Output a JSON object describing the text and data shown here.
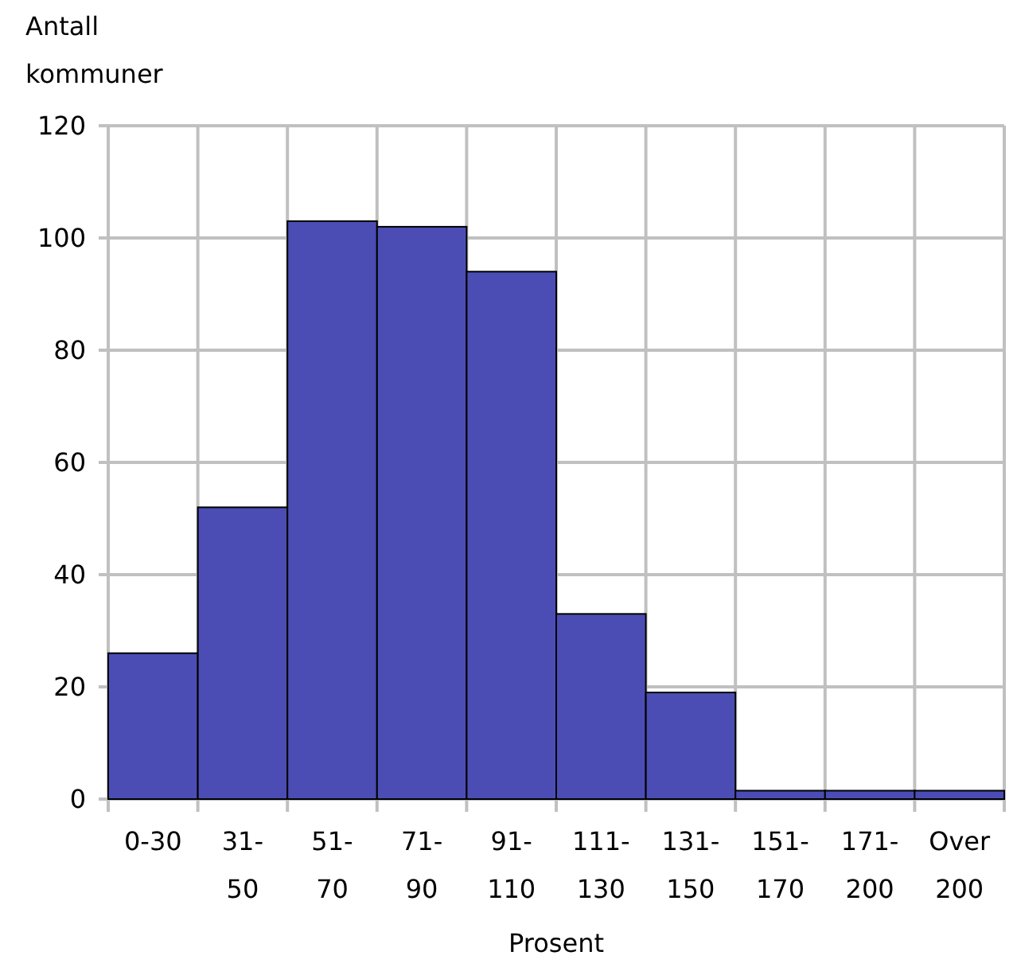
{
  "chart_data": {
    "type": "bar",
    "ylabel": "Antall\nkommuner",
    "xlabel": "Prosent",
    "categories": [
      "0-30",
      "31-\n50",
      "51-\n70",
      "71-\n90",
      "91-\n110",
      "111-\n130",
      "131-\n150",
      "151-\n170",
      "171-\n200",
      "Over\n200"
    ],
    "values": [
      26,
      52,
      103,
      102,
      94,
      33,
      19,
      1.5,
      1.5,
      1.5
    ],
    "color": "#4b4db5",
    "ylim": [
      0,
      120
    ],
    "yticks": [
      0,
      20,
      40,
      60,
      80,
      100,
      120
    ],
    "grid": true
  }
}
